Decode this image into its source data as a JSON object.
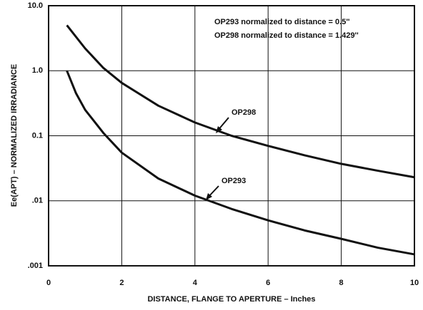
{
  "chart_data": {
    "type": "line",
    "xlabel": "DISTANCE, FLANGE TO APERTURE – Inches",
    "ylabel": "Ee(APT) – NORMALIZED IRRADIANCE",
    "annotations": [
      "OP293 normalized to distance = 0.5''",
      "OP298 normalized to distance = 1.429''"
    ],
    "xlim": [
      0,
      10
    ],
    "xticks": [
      0,
      2,
      4,
      6,
      8,
      10
    ],
    "ylim": [
      0.001,
      10
    ],
    "yticks": [
      {
        "value": 10,
        "label": "10.0"
      },
      {
        "value": 1,
        "label": "1.0"
      },
      0.1,
      {
        "value": 0.01,
        "label": ".01"
      },
      {
        "value": 0.001,
        "label": ".001"
      }
    ],
    "log_y": true,
    "grid": true,
    "series": [
      {
        "name": "OP298",
        "color": "#111111",
        "x": [
          0.5,
          1,
          1.5,
          2,
          3,
          4,
          5,
          6,
          7,
          8,
          9,
          10
        ],
        "values": [
          5,
          2.2,
          1.1,
          0.65,
          0.29,
          0.16,
          0.1,
          0.07,
          0.05,
          0.037,
          0.029,
          0.023
        ]
      },
      {
        "name": "OP293",
        "color": "#111111",
        "x": [
          0.5,
          0.75,
          1,
          1.5,
          2,
          3,
          4,
          5,
          6,
          7,
          8,
          9,
          10
        ],
        "values": [
          1,
          0.45,
          0.25,
          0.11,
          0.055,
          0.022,
          0.012,
          0.0075,
          0.005,
          0.0035,
          0.0026,
          0.0019,
          0.0015
        ]
      }
    ]
  }
}
